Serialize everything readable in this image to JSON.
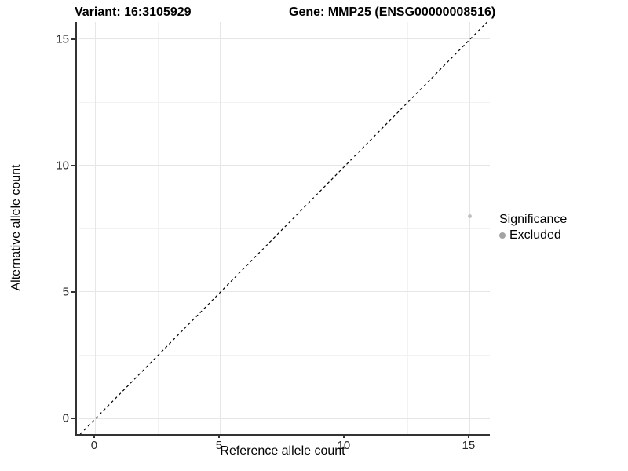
{
  "chart_data": {
    "type": "scatter",
    "title_left": "Variant: 16:3105929",
    "title_right": "Gene: MMP25 (ENSG00000008516)",
    "xlabel": "Reference allele count",
    "ylabel": "Alternative allele count",
    "xlim": [
      -0.69,
      15.79
    ],
    "ylim": [
      -0.62,
      15.68
    ],
    "xticks": [
      0,
      5,
      10,
      15
    ],
    "yticks": [
      0,
      5,
      10,
      15
    ],
    "minor_grid_step": 2.5,
    "grid": "major+minor",
    "points": [
      {
        "x": 15,
        "y": 8,
        "significance": "Excluded"
      }
    ],
    "point_color": "#c1c1c1",
    "point_radius_px": 2.5,
    "reference_line": {
      "type": "identity y=x",
      "style": "dashed",
      "color": "#000000"
    },
    "legend": {
      "title": "Significance",
      "position": "right",
      "items": [
        {
          "label": "Excluded",
          "color": "#a3a3a3"
        }
      ]
    }
  },
  "colors": {
    "background": "#ffffff",
    "axis_line": "#333333",
    "tick_label": "#262626",
    "grid_major": "#e6e6e6",
    "grid_minor": "#f2f2f2"
  }
}
